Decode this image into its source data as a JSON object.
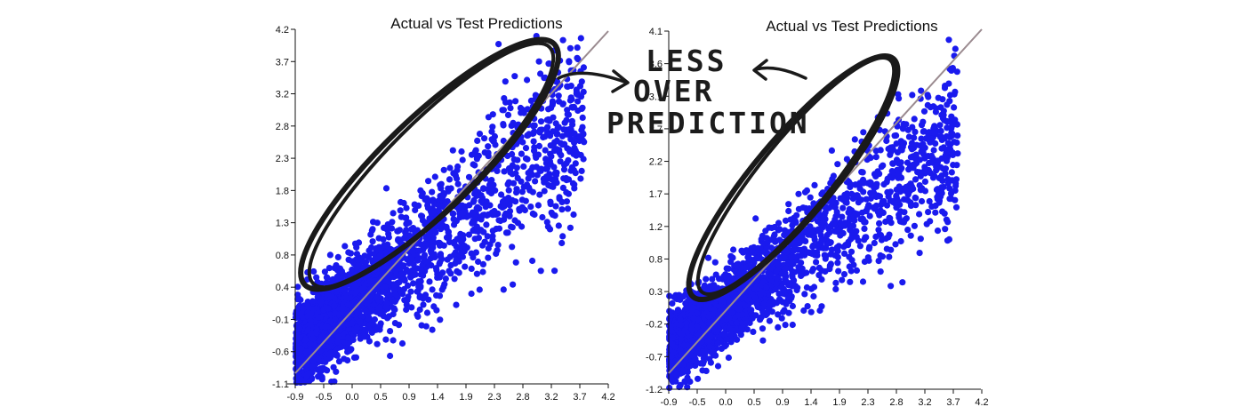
{
  "colors": {
    "points": "#1a1aee",
    "diagonal": "#9a8a8f",
    "ink": "#1a1a1a"
  },
  "annotation": {
    "lines": [
      "LESS",
      "OVER",
      "PREDICTION"
    ]
  },
  "chart_data": [
    {
      "type": "scatter",
      "title": "Actual vs Test Predictions",
      "xlim": [
        -1.0,
        4.2
      ],
      "ylim": [
        -1.1,
        4.2
      ],
      "x_ticks": [
        "-0.9",
        "-0.5",
        "0.0",
        "0.5",
        "0.9",
        "1.4",
        "1.9",
        "2.3",
        "2.8",
        "3.2",
        "3.7",
        "4.2"
      ],
      "y_ticks": [
        "-1.1",
        "-0.6",
        "-0.1",
        "0.4",
        "0.8",
        "1.3",
        "1.8",
        "2.3",
        "2.8",
        "3.2",
        "3.7",
        "4.2"
      ],
      "reference_line": "y = x",
      "grid": false,
      "n_points": 2600,
      "trend": {
        "slope": 0.72,
        "intercept": 0.12,
        "spread": 0.55
      }
    },
    {
      "type": "scatter",
      "title": "Actual vs Test Predictions",
      "xlim": [
        -1.0,
        4.2
      ],
      "ylim": [
        -1.25,
        4.15
      ],
      "x_ticks": [
        "-0.9",
        "-0.5",
        "0.0",
        "0.5",
        "0.9",
        "1.4",
        "1.9",
        "2.3",
        "2.8",
        "3.2",
        "3.7",
        "4.2"
      ],
      "y_ticks": [
        "-1.2",
        "-0.7",
        "-0.2",
        "0.3",
        "0.8",
        "1.2",
        "1.7",
        "2.2",
        "2.7",
        "3.1",
        "3.6",
        "4.1"
      ],
      "reference_line": "y = x",
      "grid": false,
      "n_points": 2600,
      "trend": {
        "slope": 0.66,
        "intercept": 0.02,
        "spread": 0.45
      }
    }
  ]
}
